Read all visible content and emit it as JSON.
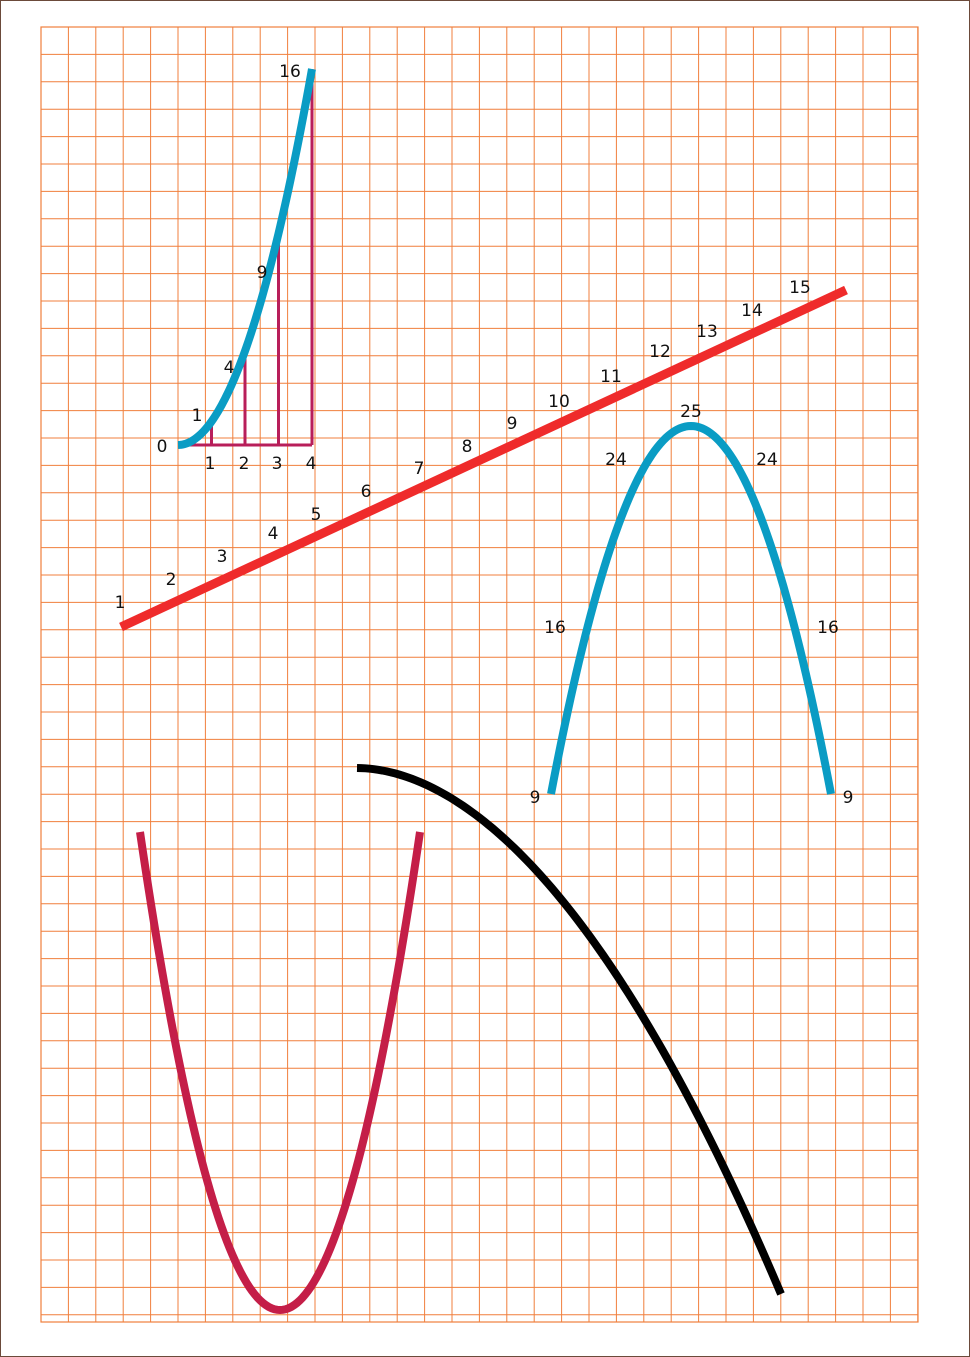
{
  "colors": {
    "grid": "#f07f3c",
    "line": "#ef2b2b",
    "blue": "#0a9cc4",
    "crimson": "#c41e48",
    "drop": "#b81e5a",
    "black": "#000000",
    "background": "#ffffff"
  },
  "diagram": {
    "small_parabola": {
      "y_labels": [
        "0",
        "1",
        "4",
        "9",
        "16"
      ],
      "x_labels": [
        "1",
        "2",
        "3",
        "4"
      ]
    },
    "line_labels": [
      "1",
      "2",
      "3",
      "4",
      "5",
      "6",
      "7",
      "8",
      "9",
      "10",
      "11",
      "12",
      "13",
      "14",
      "15"
    ],
    "arch_labels": {
      "top": "25",
      "upper_left": "24",
      "upper_right": "24",
      "mid_left": "16",
      "mid_right": "16",
      "bottom_left": "9",
      "bottom_right": "9"
    }
  }
}
